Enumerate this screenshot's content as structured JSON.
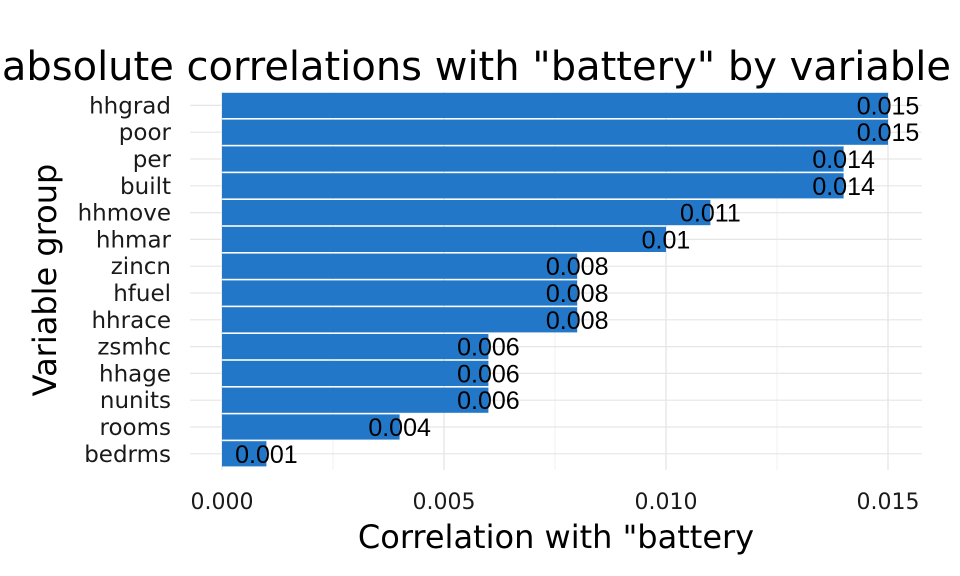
{
  "chart_data": {
    "type": "bar",
    "orientation": "horizontal",
    "title": "Mean absolute correlations with \"battery\" by variable group",
    "xlabel": "Correlation with \"battery",
    "ylabel": "Variable group",
    "categories": [
      "hhgrad",
      "poor",
      "per",
      "built",
      "hhmove",
      "hhmar",
      "zincn",
      "hfuel",
      "hhrace",
      "zsmhc",
      "hhage",
      "nunits",
      "rooms",
      "bedrms"
    ],
    "values": [
      0.015,
      0.015,
      0.014,
      0.014,
      0.011,
      0.01,
      0.008,
      0.008,
      0.008,
      0.006,
      0.006,
      0.006,
      0.004,
      0.001
    ],
    "data_labels": [
      "0.015",
      "0.015",
      "0.014",
      "0.014",
      "0.011",
      "0.01",
      "0.008",
      "0.008",
      "0.008",
      "0.006",
      "0.006",
      "0.006",
      "0.004",
      "0.001"
    ],
    "xticks": [
      "0.000",
      "0.005",
      "0.010",
      "0.015"
    ],
    "xtick_values": [
      0,
      0.005,
      0.01,
      0.015
    ],
    "xlim": [
      -0.0007,
      0.0015
    ],
    "grid": true,
    "bar_color": "#2277c8"
  }
}
